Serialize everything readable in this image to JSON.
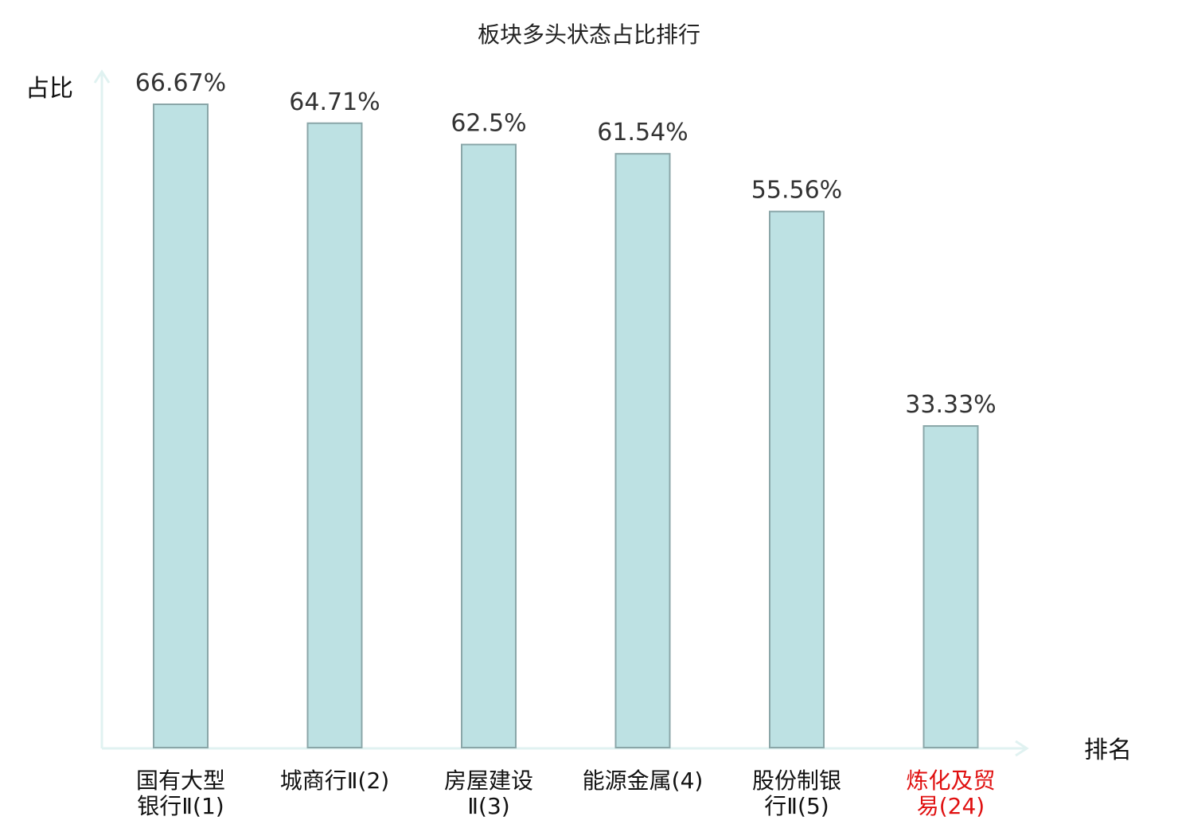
{
  "chart_data": {
    "type": "bar",
    "title": "板块多头状态占比排行",
    "ylabel": "占比",
    "xlabel": "排名",
    "ylim": [
      0,
      70
    ],
    "grid": false,
    "categories": [
      {
        "line1": "国有大型",
        "line2": "银行Ⅱ(1)",
        "highlight": false
      },
      {
        "line1": "城商行Ⅱ(2)",
        "line2": "",
        "highlight": false
      },
      {
        "line1": "房屋建设",
        "line2": "Ⅱ(3)",
        "highlight": false
      },
      {
        "line1": "能源金属(4)",
        "line2": "",
        "highlight": false
      },
      {
        "line1": "股份制银",
        "line2": "行Ⅱ(5)",
        "highlight": false
      },
      {
        "line1": "炼化及贸",
        "line2": "易(24)",
        "highlight": true
      }
    ],
    "values": [
      66.67,
      64.71,
      62.5,
      61.54,
      55.56,
      33.33
    ],
    "value_labels": [
      "66.67%",
      "64.71%",
      "62.5%",
      "61.54%",
      "55.56%",
      "33.33%"
    ],
    "colors": {
      "bar_fill": "#bde1e3",
      "bar_stroke": "#8aa6a8",
      "axis": "#e0f2f1",
      "label_text": "#333333",
      "category_text": "#111111",
      "highlight_text": "#e01010"
    }
  }
}
